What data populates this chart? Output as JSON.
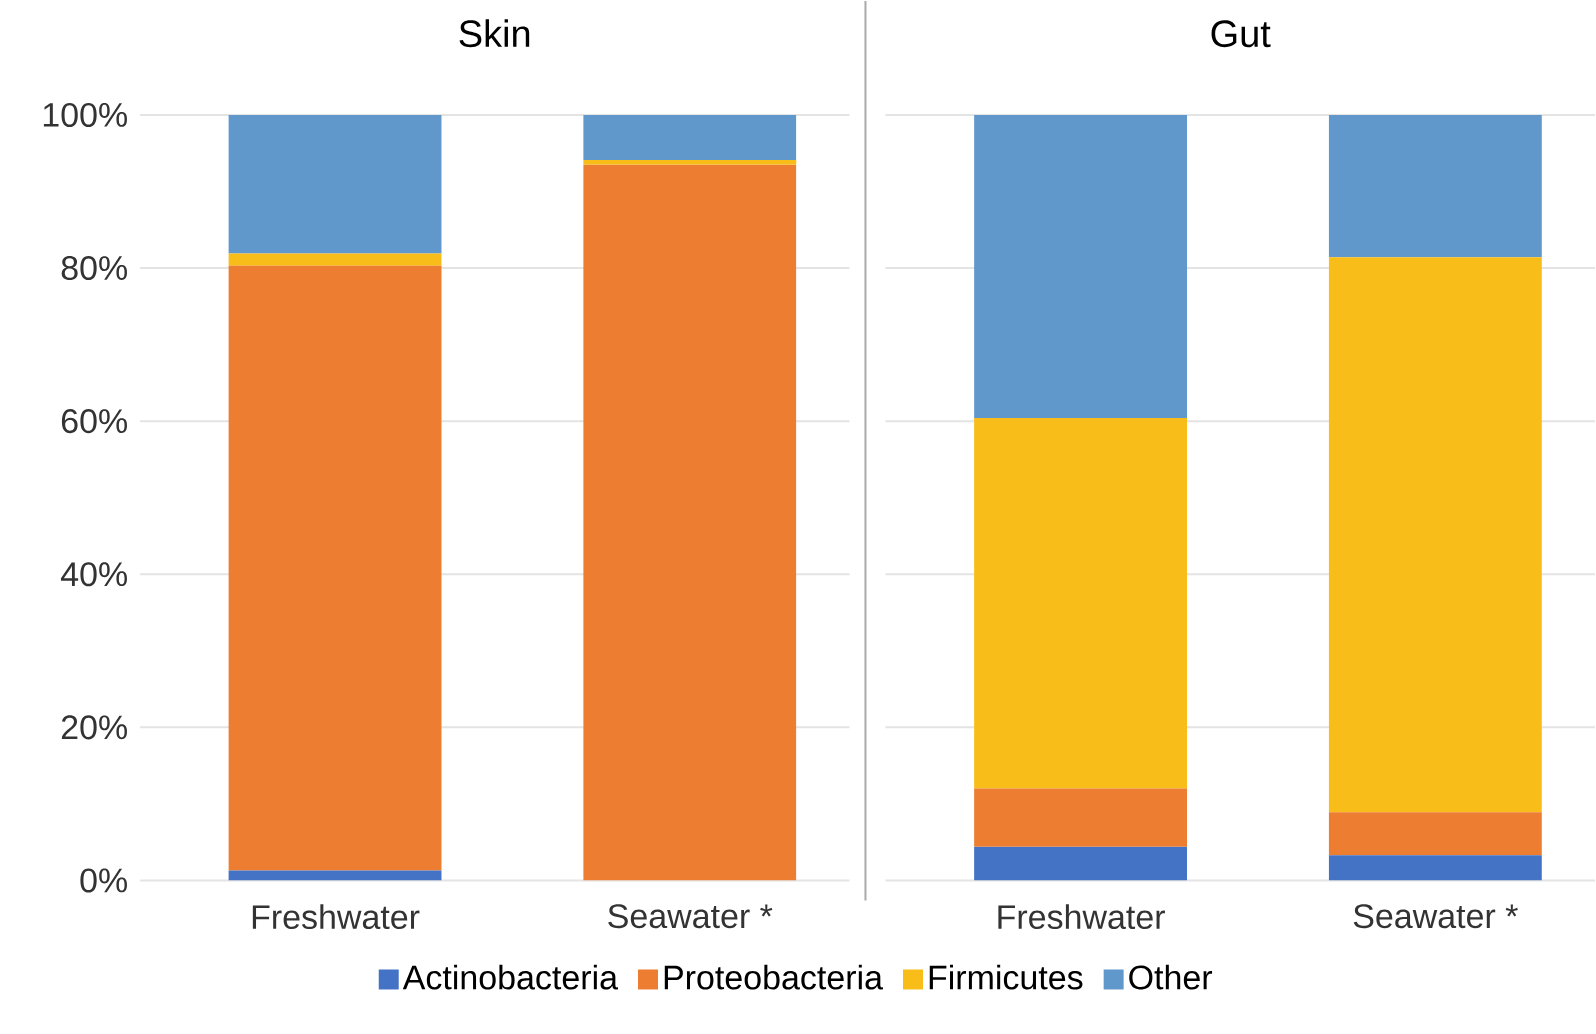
{
  "chart_data": [
    {
      "type": "bar",
      "title": "Skin",
      "categories": [
        "Freshwater",
        "Seawater *"
      ],
      "stacked": true,
      "ylim": [
        0,
        100
      ],
      "yticks": [
        {
          "value": 0,
          "label": "0%"
        },
        {
          "value": 20,
          "label": "20%"
        },
        {
          "value": 40,
          "label": "40%"
        },
        {
          "value": 60,
          "label": "60%"
        },
        {
          "value": 80,
          "label": "80%"
        },
        {
          "value": 100,
          "label": "100%"
        }
      ],
      "grid": "y",
      "legend": "bottom",
      "series": [
        {
          "name": "Actinobacteria",
          "color": "#4472c4",
          "values": [
            1.3,
            0
          ]
        },
        {
          "name": "Proteobacteria",
          "color": "#ed7d31",
          "values": [
            79.0,
            93.5
          ]
        },
        {
          "name": "Firmicutes",
          "color": "#f8bd19",
          "values": [
            1.6,
            0.6
          ]
        },
        {
          "name": "Other",
          "color": "#6098cb",
          "values": [
            18.1,
            5.9
          ]
        }
      ]
    },
    {
      "type": "bar",
      "title": "Gut",
      "categories": [
        "Freshwater",
        "Seawater *"
      ],
      "stacked": true,
      "ylim": [
        0,
        100
      ],
      "yticks": [
        0,
        20,
        40,
        60,
        80,
        100
      ],
      "grid": "y",
      "tick_labels": "x",
      "series": [
        {
          "color": "#4472c4",
          "values": [
            4.4,
            3.3
          ]
        },
        {
          "color": "#ed7d31",
          "values": [
            7.6,
            5.6
          ]
        },
        {
          "color": "#f8bd19",
          "values": [
            48.4,
            72.5
          ]
        },
        {
          "color": "#6098cb",
          "values": [
            39.6,
            18.6
          ]
        }
      ]
    }
  ]
}
